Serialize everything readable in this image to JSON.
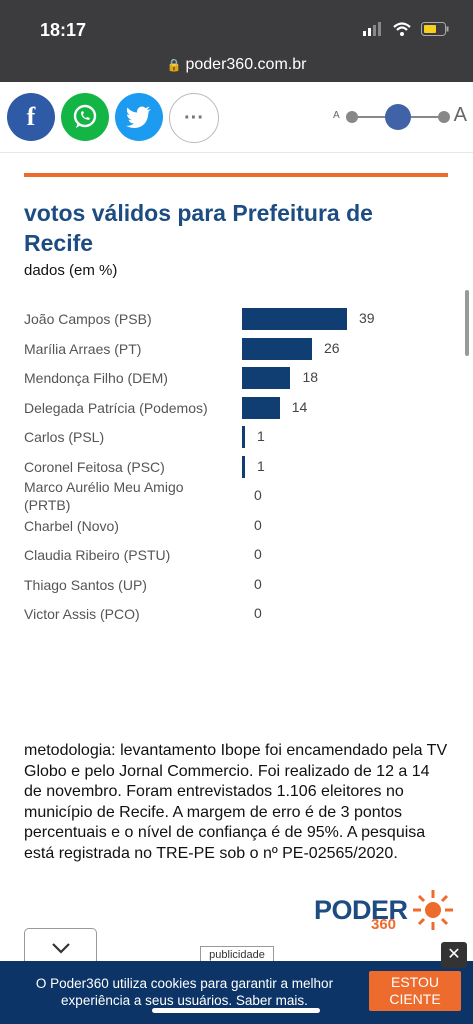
{
  "status_bar": {
    "time": "18:17",
    "url": "poder360.com.br"
  },
  "share": {
    "facebook": "f",
    "more": "···"
  },
  "font_size_control": {
    "small_label": "A",
    "large_label": "A",
    "level": 0.5
  },
  "article": {
    "title": "votos válidos para Prefeitura de Recife",
    "subtitle": "dados (em %)",
    "methodology": "metodologia: levantamento Ibope foi encamendado pela TV Globo e pelo Jornal Commercio. Foi realizado de 12 a 14 de novembro. Foram entrevistados 1.106 eleitores no município de Recife. A margem de erro é de 3 pontos percentuais e o nível de confiança é de 95%. A pesquisa está registrada no TRE-PE sob o nº PE-02565/2020."
  },
  "chart_data": {
    "type": "bar",
    "orientation": "horizontal",
    "categories": [
      "João Campos (PSB)",
      "Marília Arraes (PT)",
      "Mendonça Filho (DEM)",
      "Delegada Patrícia (Podemos)",
      "Carlos (PSL)",
      "Coronel Feitosa (PSC)",
      "Marco Aurélio Meu Amigo (PRTB)",
      "Charbel (Novo)",
      "Claudia Ribeiro (PSTU)",
      "Thiago Santos (UP)",
      "Victor Assis (PCO)"
    ],
    "values": [
      39,
      26,
      18,
      14,
      1,
      1,
      0,
      0,
      0,
      0,
      0
    ],
    "bar_color": "#103e72"
  },
  "logo": {
    "name": "PODER",
    "number": "360"
  },
  "ad": {
    "label": "publicidade"
  },
  "cookie_banner": {
    "text": "O Poder360 utiliza cookies para garantir a melhor experiência a seus usuários. Saber mais.",
    "button": "ESTOU CIENTE",
    "close": "✕"
  },
  "colors": {
    "accent": "#ec6b2d",
    "brand_blue": "#1d4c82",
    "banner": "#0d3466"
  }
}
